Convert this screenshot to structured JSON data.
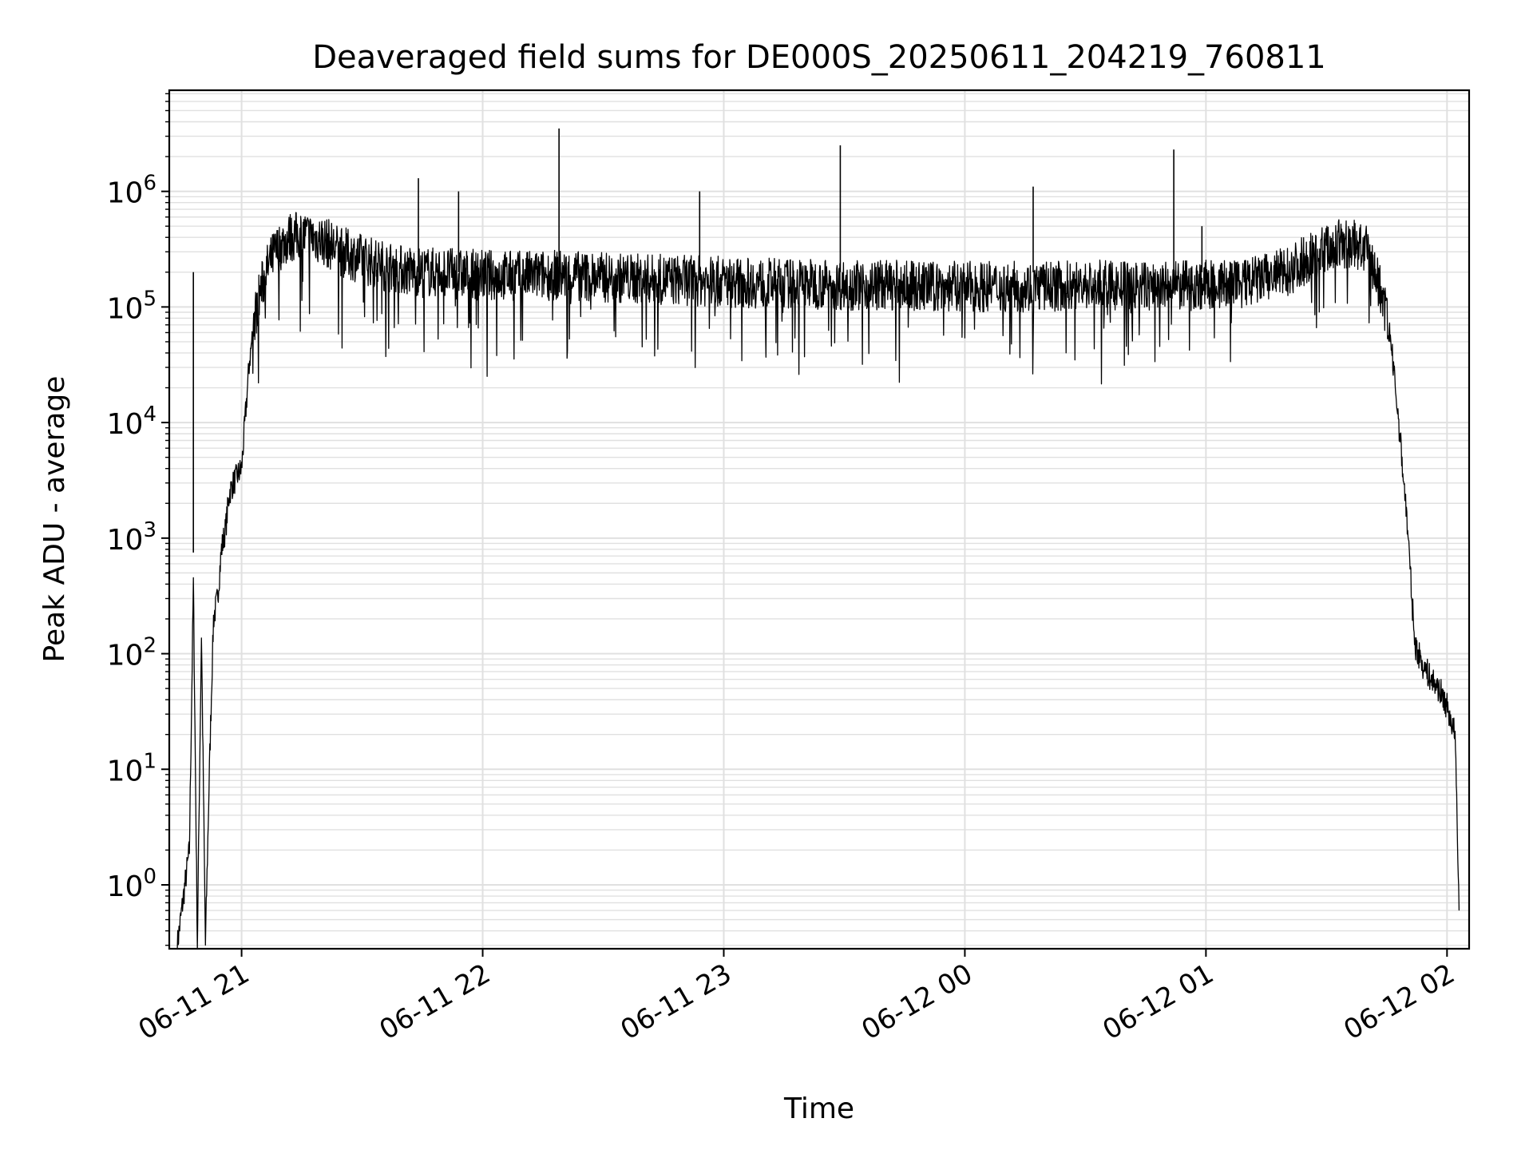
{
  "chart_data": {
    "type": "line",
    "title": "Deaveraged field sums for DE000S_20250611_204219_760811",
    "xlabel": "Time",
    "ylabel": "Peak ADU - average",
    "y_scale": "log",
    "ylim": [
      0.28,
      7500000
    ],
    "xlim": [
      "2025-06-11 20:42:00",
      "2025-06-12 02:05:30"
    ],
    "x_ticks": [
      {
        "label": "06-11 21",
        "value": "2025-06-11 21:00"
      },
      {
        "label": "06-11 22",
        "value": "2025-06-11 22:00"
      },
      {
        "label": "06-11 23",
        "value": "2025-06-11 23:00"
      },
      {
        "label": "06-12 00",
        "value": "2025-06-12 00:00"
      },
      {
        "label": "06-12 01",
        "value": "2025-06-12 01:00"
      },
      {
        "label": "06-12 02",
        "value": "2025-06-12 02:00"
      }
    ],
    "y_ticks": [
      {
        "base": "10",
        "exp": "0",
        "value": 1
      },
      {
        "base": "10",
        "exp": "1",
        "value": 10
      },
      {
        "base": "10",
        "exp": "2",
        "value": 100
      },
      {
        "base": "10",
        "exp": "3",
        "value": 1000
      },
      {
        "base": "10",
        "exp": "4",
        "value": 10000
      },
      {
        "base": "10",
        "exp": "5",
        "value": 100000
      },
      {
        "base": "10",
        "exp": "6",
        "value": 1000000
      }
    ],
    "grid": true,
    "series": [
      {
        "color": "#000000",
        "x": [
          "2025-06-11 20:44",
          "2025-06-11 20:47",
          "2025-06-11 20:48",
          "2025-06-11 20:49",
          "2025-06-11 20:50",
          "2025-06-11 20:51",
          "2025-06-11 20:52",
          "2025-06-11 20:53",
          "2025-06-11 20:54",
          "2025-06-11 20:55",
          "2025-06-11 20:56",
          "2025-06-11 20:57",
          "2025-06-11 20:58",
          "2025-06-11 20:59",
          "2025-06-11 21:00",
          "2025-06-11 21:01",
          "2025-06-11 21:02",
          "2025-06-11 21:03",
          "2025-06-11 21:04",
          "2025-06-11 21:06",
          "2025-06-11 21:08",
          "2025-06-11 21:10",
          "2025-06-11 21:12",
          "2025-06-11 21:15",
          "2025-06-11 21:20",
          "2025-06-11 21:25",
          "2025-06-11 21:30",
          "2025-06-11 21:35",
          "2025-06-11 21:40",
          "2025-06-11 21:45",
          "2025-06-11 21:50",
          "2025-06-11 21:55",
          "2025-06-11 22:00",
          "2025-06-11 22:10",
          "2025-06-11 22:20",
          "2025-06-11 22:30",
          "2025-06-11 22:40",
          "2025-06-11 22:50",
          "2025-06-11 23:00",
          "2025-06-11 23:10",
          "2025-06-11 23:20",
          "2025-06-11 23:30",
          "2025-06-11 23:40",
          "2025-06-11 23:50",
          "2025-06-12 00:00",
          "2025-06-12 00:10",
          "2025-06-12 00:20",
          "2025-06-12 00:30",
          "2025-06-12 00:40",
          "2025-06-12 00:50",
          "2025-06-12 01:00",
          "2025-06-12 01:10",
          "2025-06-12 01:20",
          "2025-06-12 01:25",
          "2025-06-12 01:30",
          "2025-06-12 01:34",
          "2025-06-12 01:38",
          "2025-06-12 01:40",
          "2025-06-12 01:42",
          "2025-06-12 01:44",
          "2025-06-12 01:46",
          "2025-06-12 01:48",
          "2025-06-12 01:50",
          "2025-06-12 01:52",
          "2025-06-12 01:54",
          "2025-06-12 01:56",
          "2025-06-12 01:58",
          "2025-06-12 02:00",
          "2025-06-12 02:02",
          "2025-06-12 02:03"
        ],
        "y": [
          0.3,
          2,
          400,
          0.3,
          150,
          0.3,
          10,
          200,
          300,
          800,
          1200,
          2500,
          3000,
          3500,
          4000,
          12000,
          35000,
          70000,
          110000,
          200000,
          280000,
          350000,
          400000,
          420000,
          380000,
          300000,
          260000,
          230000,
          210000,
          200000,
          200000,
          190000,
          190000,
          185000,
          190000,
          180000,
          175000,
          170000,
          165000,
          160000,
          160000,
          155000,
          155000,
          150000,
          150000,
          150000,
          150000,
          155000,
          150000,
          150000,
          155000,
          160000,
          200000,
          260000,
          320000,
          350000,
          340000,
          300000,
          200000,
          120000,
          50000,
          10000,
          1500,
          120,
          80,
          60,
          50,
          35,
          20,
          0.6
        ]
      }
    ],
    "spikes": [
      {
        "x": "2025-06-11 20:48",
        "y": 750
      },
      {
        "x": "2025-06-11 21:44",
        "y": 1300000
      },
      {
        "x": "2025-06-11 21:54",
        "y": 1000000
      },
      {
        "x": "2025-06-11 22:19",
        "y": 3500000
      },
      {
        "x": "2025-06-11 22:54",
        "y": 1000000
      },
      {
        "x": "2025-06-11 23:29",
        "y": 2500000
      },
      {
        "x": "2025-06-12 00:17",
        "y": 1100000
      },
      {
        "x": "2025-06-12 00:52",
        "y": 2300000
      },
      {
        "x": "2025-06-12 00:59",
        "y": 500000
      }
    ]
  }
}
